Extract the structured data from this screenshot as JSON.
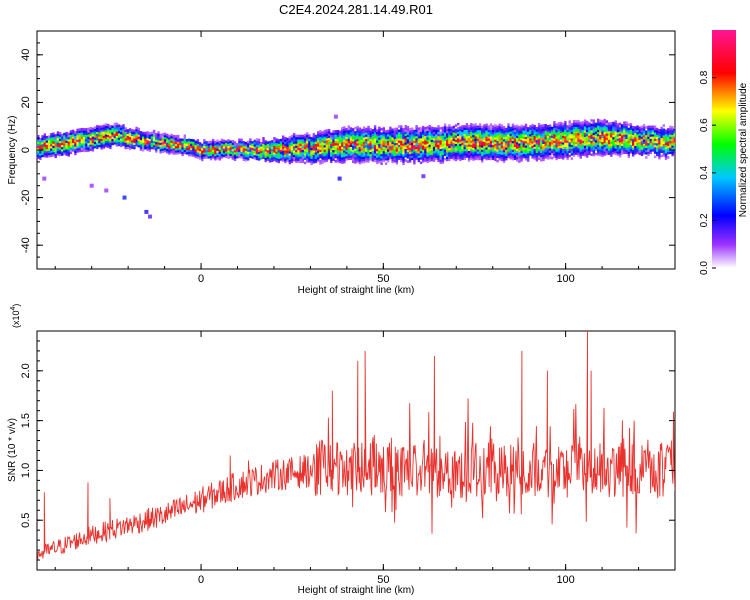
{
  "title": "C2E4.2024.281.14.49.R01",
  "chart_data": [
    {
      "type": "heatmap",
      "xlabel": "Height of straight line (km)",
      "ylabel": "Frequency (Hz)",
      "xlim": [
        -45,
        130
      ],
      "ylim": [
        -50,
        50
      ],
      "xticks": [
        0,
        50,
        100
      ],
      "yticks": [
        -40,
        -20,
        0,
        20,
        40
      ],
      "colorbar": {
        "label": "Normalized spectral amplitude",
        "range": [
          0,
          1
        ],
        "ticks": [
          0.0,
          0.2,
          0.4,
          0.6,
          0.8
        ]
      },
      "ridge": {
        "description_x": [
          -45,
          -35,
          -25,
          -15,
          -5,
          0,
          10,
          20,
          30,
          40,
          50,
          60,
          70,
          80,
          90,
          100,
          110,
          120,
          130
        ],
        "frequency": [
          1,
          3,
          6,
          4,
          2,
          0,
          0,
          0,
          1,
          2,
          2,
          2,
          3,
          3,
          3,
          4,
          5,
          4,
          3
        ],
        "spread": [
          4,
          4,
          4,
          3,
          3,
          3,
          3,
          4,
          5,
          6,
          6,
          6,
          6,
          6,
          6,
          6,
          6,
          5,
          5
        ]
      },
      "outliers": [
        {
          "x": -30,
          "y": -15,
          "value": 0.1
        },
        {
          "x": -26,
          "y": -17,
          "value": 0.1
        },
        {
          "x": -21,
          "y": -20,
          "value": 0.25
        },
        {
          "x": -15,
          "y": -26,
          "value": 0.2
        },
        {
          "x": -14,
          "y": -28,
          "value": 0.15
        },
        {
          "x": -43,
          "y": -12,
          "value": 0.1
        },
        {
          "x": 38,
          "y": -12,
          "value": 0.2
        },
        {
          "x": 61,
          "y": -11,
          "value": 0.15
        },
        {
          "x": 37,
          "y": 14,
          "value": 0.1
        }
      ]
    },
    {
      "type": "line",
      "xlabel": "Height of straight line (km)",
      "ylabel": "SNR (10 * v/v)",
      "yscale_label": "(x10",
      "yscale_exp": "4",
      "xlim": [
        -45,
        130
      ],
      "ylim": [
        0.0,
        2.4
      ],
      "xticks": [
        0,
        50,
        100
      ],
      "yticks": [
        0.5,
        1.0,
        1.5,
        2.0
      ],
      "color": "#e8322e",
      "trend": {
        "x": [
          -45,
          -30,
          -10,
          0,
          10,
          20,
          30,
          40,
          60,
          80,
          100,
          130
        ],
        "y": [
          0.15,
          0.35,
          0.55,
          0.7,
          0.85,
          0.95,
          1.0,
          1.0,
          1.0,
          1.0,
          1.0,
          1.0
        ]
      },
      "spikes": [
        {
          "x": -43,
          "y": 0.78
        },
        {
          "x": -31,
          "y": 0.88
        },
        {
          "x": -25,
          "y": 0.72
        },
        {
          "x": 8,
          "y": 1.15
        },
        {
          "x": 13,
          "y": 1.1
        },
        {
          "x": 36,
          "y": 1.8
        },
        {
          "x": 43,
          "y": 2.1
        },
        {
          "x": 45,
          "y": 2.2
        },
        {
          "x": 64,
          "y": 2.15
        },
        {
          "x": 88,
          "y": 2.2
        },
        {
          "x": 95,
          "y": 2.0
        },
        {
          "x": 106,
          "y": 2.4
        },
        {
          "x": 107,
          "y": 2.0
        },
        {
          "x": 129,
          "y": 1.3
        }
      ]
    }
  ]
}
